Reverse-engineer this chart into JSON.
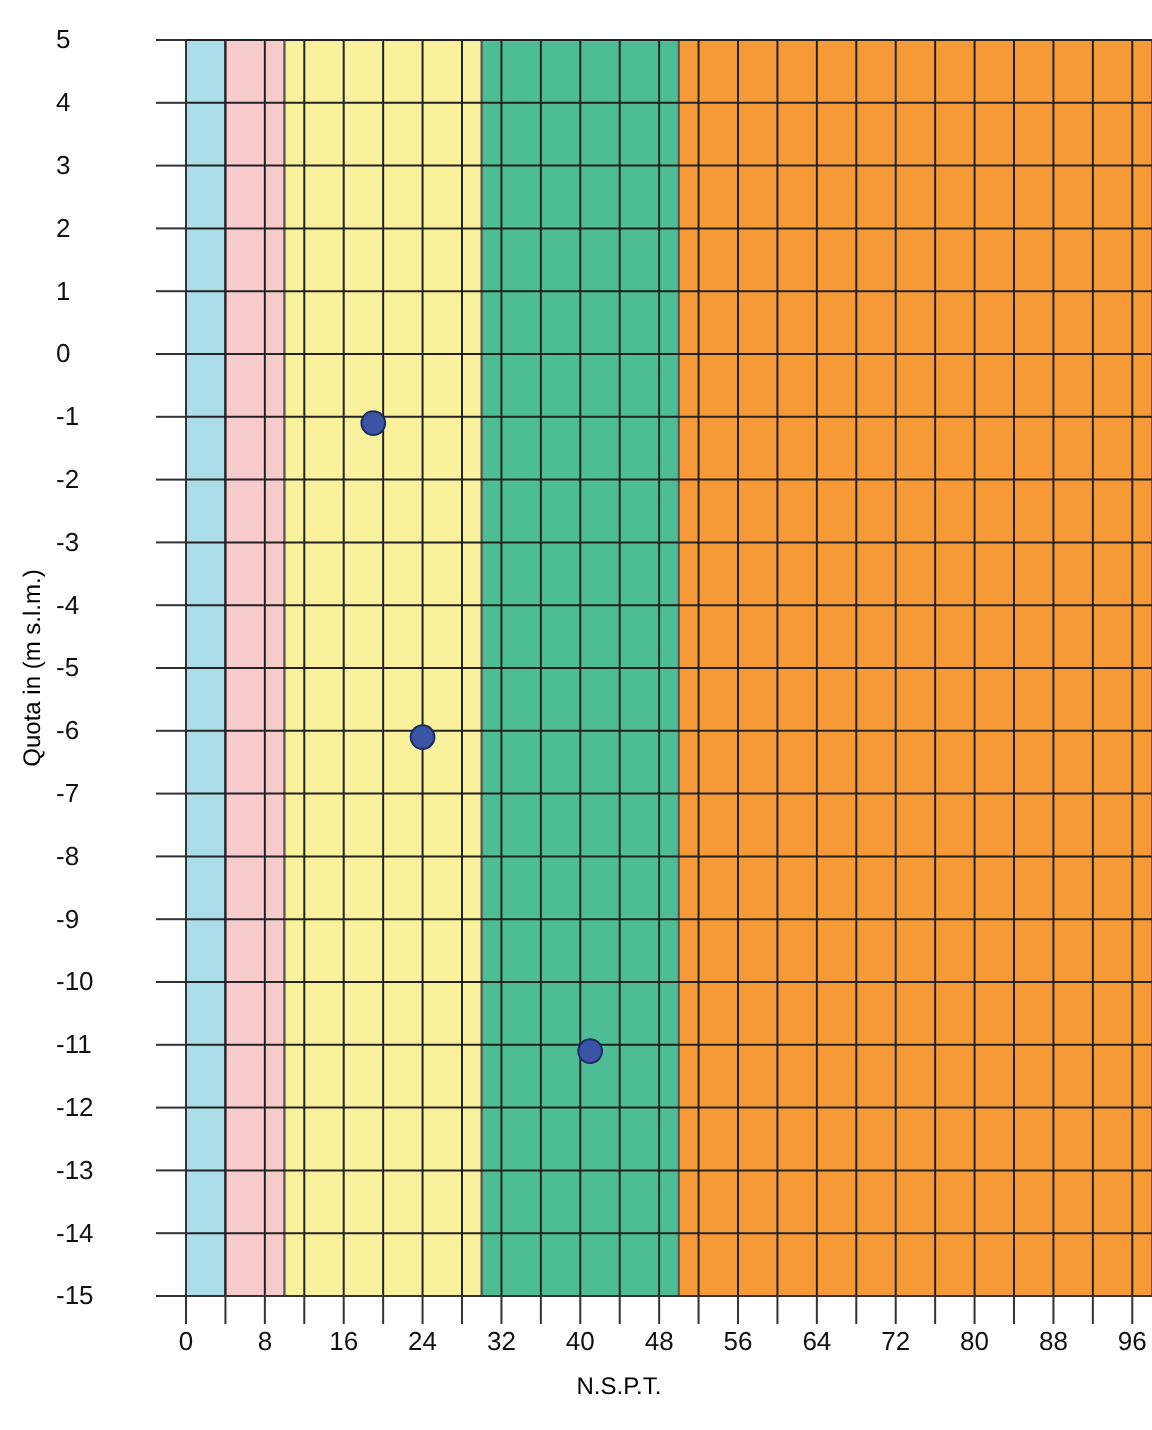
{
  "chart_data": {
    "type": "scatter",
    "xlabel": "N.S.P.T.",
    "ylabel": "Quota in (m s.l.m.)",
    "x": [
      19,
      24,
      41
    ],
    "series": [
      {
        "color": "#3a55a6",
        "values": [
          -1.1,
          -6.1,
          -11.1
        ]
      }
    ],
    "marker": "circle",
    "xlim": [
      0,
      98
    ],
    "xticks": [
      0,
      {
        "value": 4,
        "label": null
      },
      8,
      {
        "value": 12,
        "label": null
      },
      16,
      {
        "value": 20,
        "label": null
      },
      24,
      {
        "value": 28,
        "label": null
      },
      32,
      {
        "value": 36,
        "label": null
      },
      40,
      {
        "value": 44,
        "label": null
      },
      48,
      {
        "value": 52,
        "label": null
      },
      56,
      {
        "value": 60,
        "label": null
      },
      64,
      {
        "value": 68,
        "label": null
      },
      72,
      {
        "value": 76,
        "label": null
      },
      80,
      {
        "value": 84,
        "label": null
      },
      88,
      {
        "value": 92,
        "label": null
      },
      96
    ],
    "ylim": [
      -15,
      5
    ],
    "yticks": [
      -15,
      -14,
      -13,
      -12,
      -11,
      -10,
      -9,
      -8,
      -7,
      -6,
      -5,
      -4,
      -3,
      -2,
      -1,
      0,
      1,
      2,
      3,
      4,
      5
    ],
    "bands": [
      {
        "axis": "x",
        "from": 0,
        "to": 4,
        "color": "#aadde8"
      },
      {
        "axis": "x",
        "from": 4,
        "to": 10,
        "color": "#f7cbcc"
      },
      {
        "axis": "x",
        "from": 10,
        "to": 30,
        "color": "#faf19c"
      },
      {
        "axis": "x",
        "from": 30,
        "to": 50,
        "color": "#4cbd94"
      },
      {
        "axis": "x",
        "from": 50,
        "to": 98,
        "color": "#f69a38"
      }
    ],
    "grid": true
  }
}
